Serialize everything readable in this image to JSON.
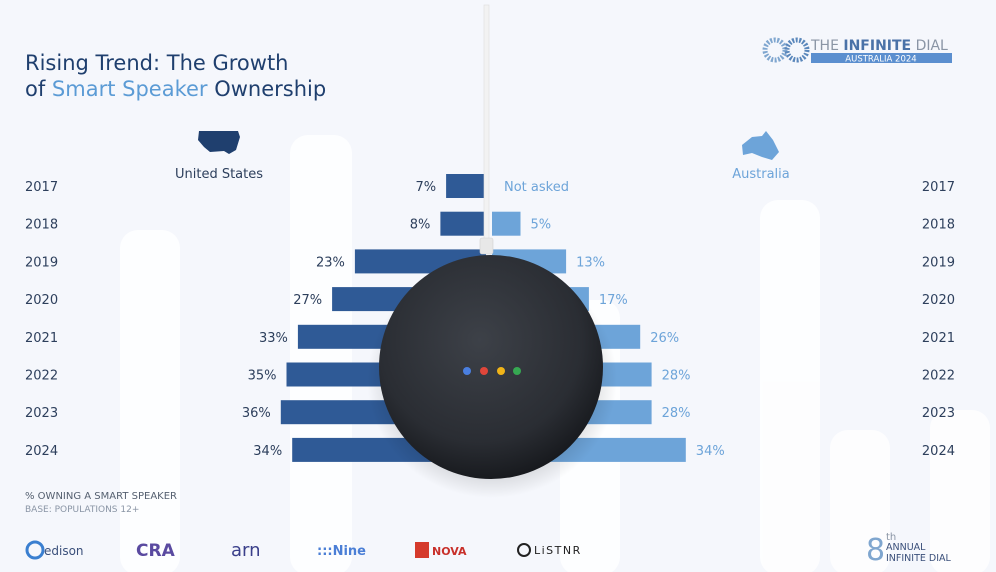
{
  "header": {
    "title_line1": "Rising Trend: The Growth",
    "title_line2_pre": "of ",
    "title_line2_accent": "Smart Speaker",
    "title_line2_post": " Ownership",
    "logo_main_pre": "THE ",
    "logo_main_bold": "INFINITE",
    "logo_main_post": " DIAL",
    "logo_sub": "AUSTRALIA 2024"
  },
  "chart_data": {
    "type": "bar",
    "orientation": "horizontal-butterfly",
    "categories": [
      "2017",
      "2018",
      "2019",
      "2020",
      "2021",
      "2022",
      "2023",
      "2024"
    ],
    "series": [
      {
        "name": "United States",
        "values": [
          7,
          8,
          23,
          27,
          33,
          35,
          36,
          34
        ],
        "labels": [
          "7%",
          "8%",
          "23%",
          "27%",
          "33%",
          "35%",
          "36%",
          "34%"
        ],
        "color": "#2f5a96",
        "side": "left",
        "icon": "usa-map-icon"
      },
      {
        "name": "Australia",
        "values": [
          null,
          5,
          13,
          17,
          26,
          28,
          28,
          34
        ],
        "labels": [
          "Not asked",
          "5%",
          "13%",
          "17%",
          "26%",
          "28%",
          "28%",
          "34%"
        ],
        "color": "#6da4d9",
        "side": "right",
        "icon": "australia-map-icon"
      }
    ],
    "xlim": [
      0,
      40
    ],
    "grid": false,
    "legend": "top, above each side"
  },
  "footnote": {
    "line1": "% OWNING A SMART SPEAKER",
    "line2": "BASE: POPULATIONS 12+"
  },
  "sponsors": [
    "edison",
    "CRA",
    "arn",
    ":::Nine",
    "NOVA",
    "LiSTNR"
  ],
  "badge": {
    "num": "8",
    "sup": "th",
    "line1": "ANNUAL",
    "line2": "INFINITE DIAL"
  },
  "colors": {
    "title": "#1f3f6e",
    "accent": "#5b9bd5",
    "us": "#2f5a96",
    "au": "#6da4d9",
    "text": "#2d3f5c"
  }
}
